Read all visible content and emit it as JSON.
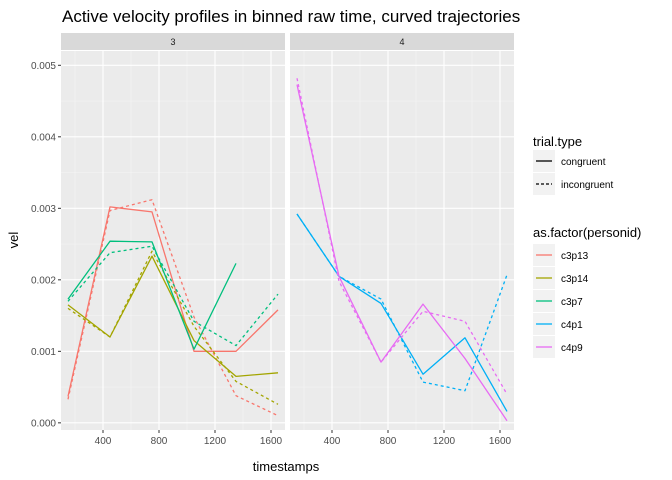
{
  "chart_data": {
    "type": "line",
    "title": "Active velocity profiles in binned raw time, curved trajectories",
    "xlabel": "timestamps",
    "ylabel": "vel",
    "xlim": [
      100,
      1700
    ],
    "ylim": [
      -0.0001,
      0.0052
    ],
    "x_ticks": [
      400,
      800,
      1200,
      1600
    ],
    "y_ticks": [
      0.0,
      0.001,
      0.002,
      0.003,
      0.004,
      0.005
    ],
    "y_tick_labels": [
      "0.000",
      "0.001",
      "0.002",
      "0.003",
      "0.004",
      "0.005"
    ],
    "grid": true,
    "legend_position": "right",
    "legends": [
      {
        "title": "trial.type",
        "entries": [
          {
            "label": "congruent",
            "linetype": "solid"
          },
          {
            "label": "incongruent",
            "linetype": "dashed"
          }
        ]
      },
      {
        "title": "as.factor(personid)",
        "entries": [
          {
            "label": "c3p13",
            "color": "#F8766D"
          },
          {
            "label": "c3p14",
            "color": "#A3A500"
          },
          {
            "label": "c3p7",
            "color": "#00BF7D"
          },
          {
            "label": "c4p1",
            "color": "#00B0F6"
          },
          {
            "label": "c4p9",
            "color": "#E76BF3"
          }
        ]
      }
    ],
    "panels": [
      {
        "label": "3",
        "series": [
          {
            "person": "c3p13",
            "trial": "congruent",
            "x": [
              150,
              450,
              750,
              1050,
              1350,
              1650
            ],
            "y": [
              0.00037,
              0.00302,
              0.00295,
              0.001,
              0.001,
              0.00158
            ]
          },
          {
            "person": "c3p13",
            "trial": "incongruent",
            "x": [
              150,
              450,
              750,
              1050,
              1350,
              1650
            ],
            "y": [
              0.00033,
              0.00297,
              0.00312,
              0.00148,
              0.00038,
              0.0001
            ]
          },
          {
            "person": "c3p14",
            "trial": "congruent",
            "x": [
              150,
              450,
              750,
              1050,
              1350,
              1650
            ],
            "y": [
              0.00165,
              0.0012,
              0.00233,
              0.00115,
              0.00065,
              0.0007
            ]
          },
          {
            "person": "c3p14",
            "trial": "incongruent",
            "x": [
              150,
              450,
              750,
              1050,
              1350,
              1650
            ],
            "y": [
              0.0016,
              0.0012,
              0.0024,
              0.00135,
              0.00058,
              0.00026
            ]
          },
          {
            "person": "c3p7",
            "trial": "congruent",
            "x": [
              150,
              450,
              750,
              1050,
              1350
            ],
            "y": [
              0.00173,
              0.00254,
              0.00253,
              0.00103,
              0.00223
            ]
          },
          {
            "person": "c3p7",
            "trial": "incongruent",
            "x": [
              150,
              450,
              750,
              1050,
              1350,
              1650
            ],
            "y": [
              0.0017,
              0.00238,
              0.00247,
              0.00142,
              0.00108,
              0.0018
            ]
          }
        ]
      },
      {
        "label": "4",
        "series": [
          {
            "person": "c4p1",
            "trial": "congruent",
            "x": [
              150,
              450,
              750,
              1050,
              1350,
              1650
            ],
            "y": [
              0.00292,
              0.00205,
              0.00167,
              0.00068,
              0.00119,
              0.00016
            ]
          },
          {
            "person": "c4p1",
            "trial": "incongruent",
            "x": [
              150,
              450,
              750,
              1050,
              1350,
              1650
            ],
            "y": [
              0.00292,
              0.00205,
              0.00173,
              0.00057,
              0.00045,
              0.00207
            ]
          },
          {
            "person": "c4p9",
            "trial": "congruent",
            "x": [
              150,
              450,
              750,
              1050,
              1350,
              1650
            ],
            "y": [
              0.00473,
              0.00205,
              0.00085,
              0.00166,
              0.0009,
              3e-05
            ]
          },
          {
            "person": "c4p9",
            "trial": "incongruent",
            "x": [
              150,
              450,
              750,
              1050,
              1350,
              1650
            ],
            "y": [
              0.00482,
              0.00198,
              0.00085,
              0.00156,
              0.00142,
              0.0004
            ]
          }
        ]
      }
    ]
  }
}
